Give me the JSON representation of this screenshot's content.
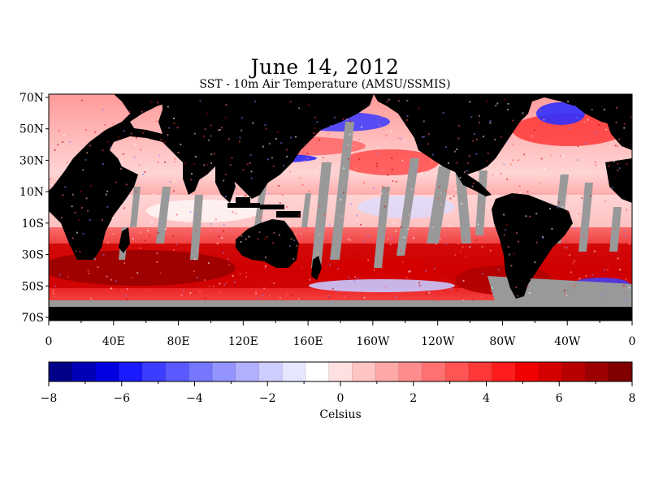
{
  "title": "June 14, 2012",
  "subtitle": "SST - 10m Air Temperature (AMSU/SSMIS)",
  "lat_labels": [
    "70N",
    "50N",
    "30N",
    "10N",
    "10S",
    "30S",
    "50S",
    "70S"
  ],
  "lon_labels": [
    "0",
    "40E",
    "80E",
    "120E",
    "160E",
    "160W",
    "120W",
    "80W",
    "40W",
    "0"
  ],
  "colorbar": {
    "min": -8,
    "max": 8,
    "tick_labels": [
      "-8",
      "-6",
      "-4",
      "-2",
      "0",
      "2",
      "4",
      "6",
      "8"
    ],
    "unit": "Celsius",
    "colors": [
      "#00008b",
      "#0000b8",
      "#0000e0",
      "#1a1aff",
      "#3d3dff",
      "#5a5aff",
      "#7676ff",
      "#9494ff",
      "#b0b0ff",
      "#cdcdff",
      "#e6e6ff",
      "#ffffff",
      "#ffe0e0",
      "#ffc4c4",
      "#ffa8a8",
      "#ff8c8c",
      "#ff7070",
      "#ff5454",
      "#ff3838",
      "#ff1c1c",
      "#f00000",
      "#d40000",
      "#b80000",
      "#9c0000",
      "#800000"
    ]
  },
  "colors": {
    "land": "#000000",
    "no_data": "#999999",
    "frame": "#000000"
  }
}
